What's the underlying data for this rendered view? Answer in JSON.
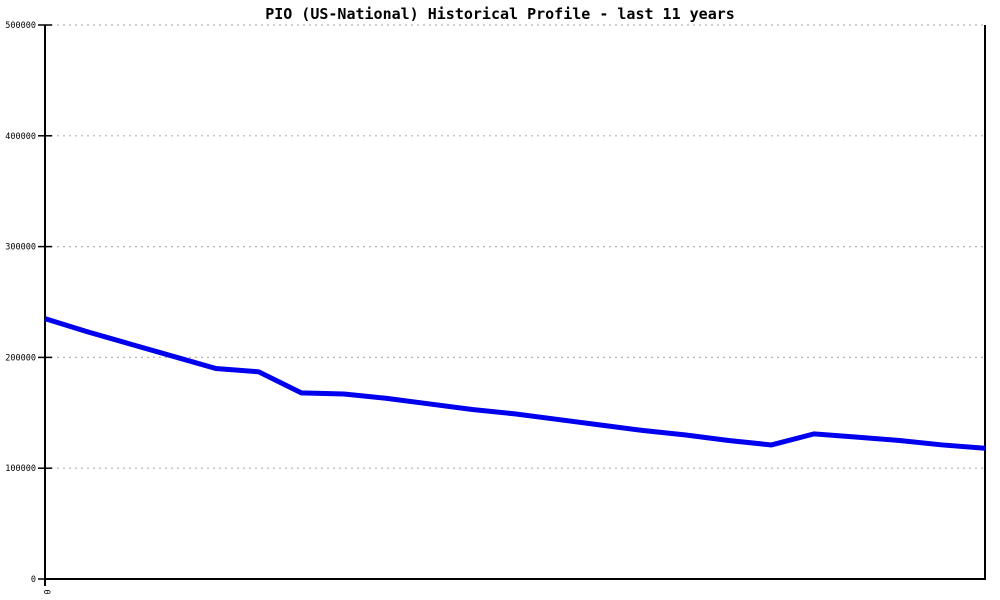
{
  "chart_data": {
    "type": "line",
    "title": "PIO (US-National) Historical Profile - last 11 years",
    "x": [
      0,
      1,
      2,
      3,
      4,
      5,
      6,
      7,
      8,
      9,
      10,
      11,
      12,
      13,
      14,
      15,
      16,
      17,
      18,
      19,
      20,
      21,
      22
    ],
    "values": [
      235000,
      223000,
      212000,
      201000,
      190000,
      187000,
      168000,
      167000,
      163000,
      158000,
      153000,
      149000,
      144000,
      139000,
      134000,
      130000,
      125000,
      121000,
      131000,
      128000,
      125000,
      121000,
      118000
    ],
    "series_name": "PIO (US-National)",
    "xlabel": "",
    "ylabel": "",
    "ylim": [
      0,
      500000
    ],
    "grid": "horizontal-dotted",
    "legend": "none",
    "line_color": "#0000ee",
    "line_width": 5,
    "y_axis": {
      "ticks": [
        {
          "v": 0,
          "label": "0"
        },
        {
          "v": 100000,
          "label": "100000"
        },
        {
          "v": 200000,
          "label": "200000"
        },
        {
          "v": 300000,
          "label": "300000"
        },
        {
          "v": 400000,
          "label": "400000"
        },
        {
          "v": 500000,
          "label": "500000"
        }
      ]
    },
    "x_axis": {
      "visible_tick_label": "0",
      "tick_label_rotation_deg": 90
    },
    "colors": {
      "background": "#ffffff",
      "axis": "#000000",
      "gridline": "#b4b4b4",
      "text": "#000000"
    }
  }
}
